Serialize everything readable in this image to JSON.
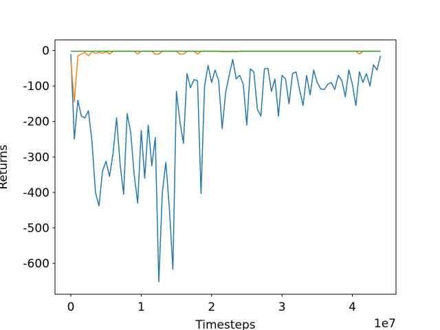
{
  "chart_data": {
    "type": "line",
    "xlabel": "Timesteps",
    "ylabel": "Returns",
    "x_offset_label": "1e7",
    "xlim": [
      -0.225,
      4.62
    ],
    "ylim": [
      -687,
      30
    ],
    "xticks": [
      0,
      1,
      2,
      3,
      4
    ],
    "yticks": [
      0,
      -100,
      -200,
      -300,
      -400,
      -500,
      -600
    ],
    "grid": false,
    "x": [
      0,
      0.05,
      0.1,
      0.15,
      0.2,
      0.25,
      0.3,
      0.35,
      0.4,
      0.45,
      0.5,
      0.55,
      0.6,
      0.65,
      0.7,
      0.75,
      0.8,
      0.85,
      0.9,
      0.95,
      1,
      1.05,
      1.1,
      1.15,
      1.2,
      1.25,
      1.3,
      1.35,
      1.4,
      1.45,
      1.5,
      1.55,
      1.6,
      1.65,
      1.7,
      1.75,
      1.8,
      1.85,
      1.9,
      1.95,
      2,
      2.05,
      2.1,
      2.15,
      2.2,
      2.25,
      2.3,
      2.35,
      2.4,
      2.45,
      2.5,
      2.55,
      2.6,
      2.65,
      2.7,
      2.75,
      2.8,
      2.85,
      2.9,
      2.95,
      3,
      3.05,
      3.1,
      3.15,
      3.2,
      3.25,
      3.3,
      3.35,
      3.4,
      3.45,
      3.5,
      3.55,
      3.6,
      3.65,
      3.7,
      3.75,
      3.8,
      3.85,
      3.9,
      3.95,
      4,
      4.05,
      4.1,
      4.15,
      4.2,
      4.25,
      4.3,
      4.35,
      4.4
    ],
    "series": [
      {
        "color": "#1f77b4",
        "values": [
          -10,
          -250,
          -140,
          -185,
          -190,
          -170,
          -255,
          -400,
          -438,
          -340,
          -312,
          -355,
          -290,
          -190,
          -320,
          -405,
          -178,
          -230,
          -350,
          -430,
          -225,
          -360,
          -210,
          -325,
          -245,
          -652,
          -400,
          -315,
          -445,
          -617,
          -115,
          -200,
          -262,
          -65,
          -105,
          -82,
          -85,
          -403,
          -100,
          -42,
          -90,
          -55,
          -85,
          -220,
          -118,
          -70,
          -25,
          -80,
          -70,
          -95,
          -210,
          -52,
          -60,
          -165,
          -185,
          -52,
          -50,
          -115,
          -80,
          -185,
          -70,
          -80,
          -150,
          -65,
          -60,
          -110,
          -155,
          -70,
          -125,
          -55,
          -90,
          -108,
          -110,
          -95,
          -90,
          -110,
          -70,
          -85,
          -130,
          -55,
          -95,
          -155,
          -60,
          -90,
          -65,
          -100,
          -40,
          -55,
          -15
        ]
      },
      {
        "color": "#ff7f0e",
        "values": [
          -30,
          -145,
          -15,
          -10,
          -5,
          -15,
          -3,
          -8,
          -5,
          -8,
          -3,
          -10,
          -2,
          -2,
          -2,
          -2,
          -2,
          -2,
          -2,
          -10,
          -2,
          -2,
          -2,
          -2,
          -10,
          -10,
          -2,
          -2,
          -2,
          -2,
          -2,
          -10,
          -10,
          -2,
          -2,
          -2,
          -10,
          -2,
          -2,
          -2,
          -2,
          -2,
          -2,
          -2,
          -2,
          -2,
          -2,
          -2,
          -2,
          -2,
          -2,
          -2,
          -2,
          -2,
          -2,
          -2,
          -2,
          -2,
          -2,
          -2,
          -2,
          -2,
          -2,
          -2,
          -2,
          -2,
          -2,
          -2,
          -2,
          -2,
          -2,
          -2,
          -2,
          -2,
          -2,
          -2,
          -2,
          -2,
          -2,
          -2,
          -2,
          -2,
          -10,
          -2,
          -2,
          -2,
          -2,
          -2,
          -2
        ]
      },
      {
        "color": "#2ca02c",
        "values": [
          -2,
          -2,
          -2,
          -2,
          -2,
          -2,
          -2,
          -2,
          -2,
          -2,
          -2,
          -2,
          -2,
          -2,
          -2,
          -2,
          -2,
          -2,
          -2,
          -2,
          -2,
          -2,
          -2,
          -2,
          -2,
          -2,
          -2,
          -2,
          -2,
          -2,
          -2,
          -2,
          -2,
          -2,
          -2,
          -2,
          -2,
          -2,
          -2,
          -2,
          -2,
          -2,
          -2,
          -3,
          -3,
          -3,
          -3,
          -3,
          -2,
          -2,
          -2,
          -2,
          -2,
          -2,
          -2,
          -2,
          -2,
          -2,
          -2,
          -2,
          -2,
          -2,
          -2,
          -2,
          -2,
          -2,
          -2,
          -2,
          -2,
          -2,
          -2,
          -2,
          -2,
          -2,
          -2,
          -2,
          -2,
          -2,
          -2,
          -2,
          -2,
          -2,
          -2,
          -2,
          -2,
          -2,
          -2,
          -2,
          -2
        ]
      }
    ]
  }
}
